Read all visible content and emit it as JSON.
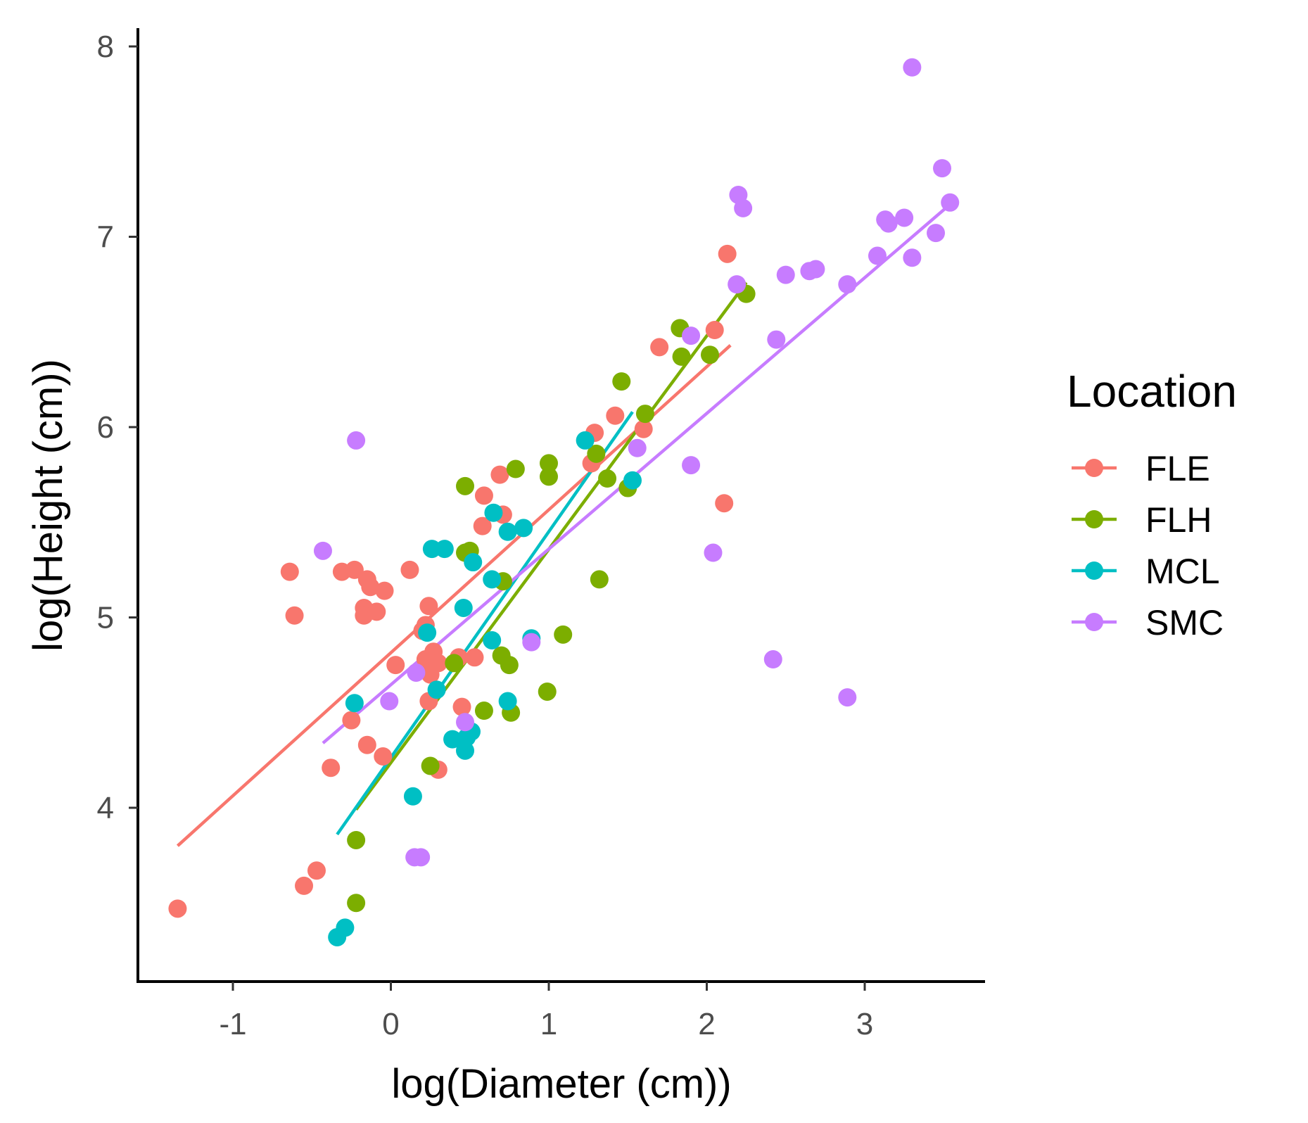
{
  "chart_data": {
    "type": "scatter",
    "title": "",
    "xlabel": "log(Diameter (cm))",
    "ylabel": "log(Height (cm))",
    "xlim": [
      -1.6,
      3.8
    ],
    "ylim": [
      3.1,
      8.1
    ],
    "xticks": [
      -1,
      0,
      1,
      2,
      3
    ],
    "yticks": [
      4,
      5,
      6,
      7,
      8
    ],
    "grid": false,
    "legend": {
      "title": "Location",
      "position": "right"
    },
    "series": [
      {
        "name": "FLE",
        "color": "#F8766D",
        "points": [
          [
            -1.35,
            3.47
          ],
          [
            -0.55,
            3.59
          ],
          [
            -0.47,
            3.67
          ],
          [
            -0.38,
            4.21
          ],
          [
            -0.25,
            4.46
          ],
          [
            -0.15,
            4.33
          ],
          [
            -0.05,
            4.27
          ],
          [
            -0.64,
            5.24
          ],
          [
            -0.61,
            5.01
          ],
          [
            -0.31,
            5.24
          ],
          [
            -0.23,
            5.25
          ],
          [
            -0.15,
            5.2
          ],
          [
            -0.13,
            5.16
          ],
          [
            -0.17,
            5.05
          ],
          [
            -0.17,
            5.01
          ],
          [
            -0.09,
            5.03
          ],
          [
            -0.04,
            5.14
          ],
          [
            0.03,
            4.75
          ],
          [
            0.12,
            5.25
          ],
          [
            0.2,
            4.93
          ],
          [
            0.22,
            4.96
          ],
          [
            0.24,
            5.06
          ],
          [
            0.22,
            4.78
          ],
          [
            0.27,
            4.82
          ],
          [
            0.25,
            4.7
          ],
          [
            0.3,
            4.76
          ],
          [
            0.24,
            4.56
          ],
          [
            0.3,
            4.2
          ],
          [
            0.43,
            4.79
          ],
          [
            0.53,
            4.79
          ],
          [
            0.45,
            4.53
          ],
          [
            0.58,
            5.48
          ],
          [
            0.59,
            5.64
          ],
          [
            0.69,
            5.75
          ],
          [
            0.71,
            5.54
          ],
          [
            1.27,
            5.81
          ],
          [
            1.29,
            5.97
          ],
          [
            1.42,
            6.06
          ],
          [
            1.6,
            5.99
          ],
          [
            1.7,
            6.42
          ],
          [
            2.05,
            6.51
          ],
          [
            2.13,
            6.91
          ],
          [
            2.11,
            5.6
          ]
        ]
      },
      {
        "name": "FLH",
        "color": "#7CAE00",
        "points": [
          [
            -0.22,
            3.5
          ],
          [
            -0.22,
            3.83
          ],
          [
            0.25,
            4.22
          ],
          [
            0.4,
            4.76
          ],
          [
            0.47,
            5.34
          ],
          [
            0.47,
            5.69
          ],
          [
            0.5,
            5.35
          ],
          [
            0.59,
            4.51
          ],
          [
            0.7,
            4.8
          ],
          [
            0.71,
            5.19
          ],
          [
            0.75,
            4.75
          ],
          [
            0.76,
            4.5
          ],
          [
            0.79,
            5.78
          ],
          [
            0.99,
            4.61
          ],
          [
            1.0,
            5.74
          ],
          [
            1.0,
            5.81
          ],
          [
            1.09,
            4.91
          ],
          [
            1.3,
            5.86
          ],
          [
            1.32,
            5.2
          ],
          [
            1.37,
            5.73
          ],
          [
            1.46,
            6.24
          ],
          [
            1.5,
            5.68
          ],
          [
            1.61,
            6.07
          ],
          [
            1.83,
            6.52
          ],
          [
            1.84,
            6.37
          ],
          [
            2.02,
            6.38
          ],
          [
            2.25,
            6.7
          ]
        ]
      },
      {
        "name": "MCL",
        "color": "#00BFC4",
        "points": [
          [
            -0.34,
            3.32
          ],
          [
            -0.29,
            3.37
          ],
          [
            -0.23,
            4.55
          ],
          [
            0.14,
            4.06
          ],
          [
            0.23,
            4.92
          ],
          [
            0.26,
            5.36
          ],
          [
            0.29,
            4.62
          ],
          [
            0.34,
            5.36
          ],
          [
            0.39,
            4.36
          ],
          [
            0.46,
            5.05
          ],
          [
            0.47,
            4.3
          ],
          [
            0.48,
            4.37
          ],
          [
            0.51,
            4.4
          ],
          [
            0.52,
            5.29
          ],
          [
            0.64,
            4.88
          ],
          [
            0.64,
            5.2
          ],
          [
            0.65,
            5.55
          ],
          [
            0.74,
            4.56
          ],
          [
            0.74,
            5.45
          ],
          [
            0.84,
            5.47
          ],
          [
            0.89,
            4.89
          ],
          [
            1.23,
            5.93
          ],
          [
            1.53,
            5.72
          ]
        ]
      },
      {
        "name": "SMC",
        "color": "#C77CFF",
        "points": [
          [
            -0.43,
            5.35
          ],
          [
            -0.22,
            5.93
          ],
          [
            -0.01,
            4.56
          ],
          [
            0.15,
            3.74
          ],
          [
            0.19,
            3.74
          ],
          [
            0.16,
            4.71
          ],
          [
            0.47,
            4.45
          ],
          [
            0.89,
            4.87
          ],
          [
            1.56,
            5.89
          ],
          [
            1.9,
            5.8
          ],
          [
            1.9,
            6.48
          ],
          [
            2.04,
            5.34
          ],
          [
            2.19,
            6.75
          ],
          [
            2.2,
            7.22
          ],
          [
            2.23,
            7.15
          ],
          [
            2.42,
            4.78
          ],
          [
            2.44,
            6.46
          ],
          [
            2.5,
            6.8
          ],
          [
            2.65,
            6.82
          ],
          [
            2.69,
            6.83
          ],
          [
            2.89,
            6.75
          ],
          [
            2.89,
            4.58
          ],
          [
            3.08,
            6.9
          ],
          [
            3.13,
            7.09
          ],
          [
            3.15,
            7.07
          ],
          [
            3.25,
            7.1
          ],
          [
            3.3,
            6.89
          ],
          [
            3.3,
            7.89
          ],
          [
            3.45,
            7.02
          ],
          [
            3.49,
            7.36
          ],
          [
            3.54,
            7.18
          ]
        ]
      }
    ],
    "fit_lines": [
      {
        "series": "FLE",
        "color": "#F8766D",
        "from": [
          -1.35,
          3.8
        ],
        "to": [
          2.15,
          6.43
        ]
      },
      {
        "series": "FLH",
        "color": "#7CAE00",
        "from": [
          -0.22,
          3.99
        ],
        "to": [
          2.25,
          6.76
        ]
      },
      {
        "series": "MCL",
        "color": "#00BFC4",
        "from": [
          -0.34,
          3.86
        ],
        "to": [
          1.53,
          6.08
        ]
      },
      {
        "series": "SMC",
        "color": "#C77CFF",
        "from": [
          -0.43,
          4.34
        ],
        "to": [
          3.54,
          7.17
        ]
      }
    ]
  }
}
